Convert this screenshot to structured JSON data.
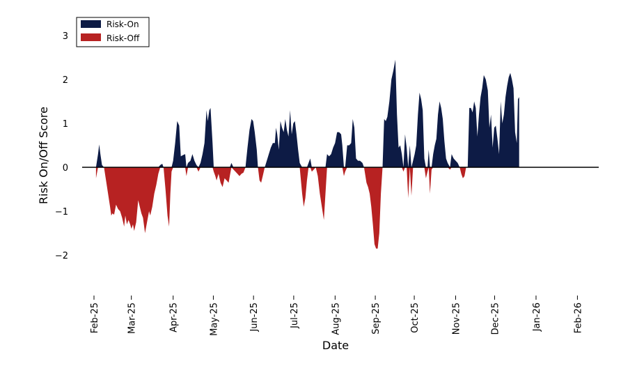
{
  "chart_data": {
    "type": "area",
    "title": "",
    "xlabel": "Date",
    "ylabel": "Risk On/Off Score",
    "ylim": [
      -3,
      3.5
    ],
    "yticks": [
      3,
      2,
      1,
      0,
      -1,
      -2
    ],
    "ytick_labels": [
      "3",
      "2",
      "1",
      "0",
      "−1",
      "−2"
    ],
    "xlim": [
      0,
      12.3
    ],
    "xticks": [
      {
        "label": "Feb-25",
        "x": 0.0
      },
      {
        "label": "Mar-25",
        "x": 0.93
      },
      {
        "label": "Apr-25",
        "x": 1.97
      },
      {
        "label": "May-25",
        "x": 2.97
      },
      {
        "label": "Jun-25",
        "x": 3.97
      },
      {
        "label": "Jul-25",
        "x": 4.97
      },
      {
        "label": "Aug-25",
        "x": 6.0
      },
      {
        "label": "Sep-25",
        "x": 7.0
      },
      {
        "label": "Oct-25",
        "x": 7.97
      },
      {
        "label": "Nov-25",
        "x": 9.0
      },
      {
        "label": "Dec-25",
        "x": 9.97
      },
      {
        "label": "Jan-26",
        "x": 11.0
      },
      {
        "label": "Feb-26",
        "x": 12.03
      }
    ],
    "legend": {
      "placement": "top-left",
      "entries": [
        {
          "label": "Risk-On",
          "color": "#0d1b45"
        },
        {
          "label": "Risk-Off",
          "color": "#b72222"
        }
      ]
    },
    "colors": {
      "positive": "#0d1b45",
      "negative": "#b72222",
      "zero_line": "#000000"
    },
    "series": [
      {
        "name": "Risk On/Off Score",
        "points": [
          [
            0.05,
            -0.25
          ],
          [
            0.1,
            0.3
          ],
          [
            0.13,
            0.52
          ],
          [
            0.16,
            0.3
          ],
          [
            0.2,
            0.05
          ],
          [
            0.25,
            0.0
          ],
          [
            0.3,
            -0.3
          ],
          [
            0.35,
            -0.6
          ],
          [
            0.4,
            -0.9
          ],
          [
            0.43,
            -1.1
          ],
          [
            0.46,
            -1.05
          ],
          [
            0.5,
            -1.08
          ],
          [
            0.55,
            -0.85
          ],
          [
            0.6,
            -0.95
          ],
          [
            0.65,
            -1.0
          ],
          [
            0.7,
            -1.15
          ],
          [
            0.75,
            -1.35
          ],
          [
            0.78,
            -1.1
          ],
          [
            0.82,
            -1.3
          ],
          [
            0.86,
            -1.2
          ],
          [
            0.9,
            -1.3
          ],
          [
            0.93,
            -1.4
          ],
          [
            0.97,
            -1.3
          ],
          [
            1.0,
            -1.45
          ],
          [
            1.05,
            -1.25
          ],
          [
            1.1,
            -0.75
          ],
          [
            1.14,
            -0.9
          ],
          [
            1.18,
            -1.05
          ],
          [
            1.22,
            -1.15
          ],
          [
            1.27,
            -1.5
          ],
          [
            1.32,
            -1.25
          ],
          [
            1.37,
            -1.0
          ],
          [
            1.4,
            -1.1
          ],
          [
            1.45,
            -0.9
          ],
          [
            1.5,
            -0.6
          ],
          [
            1.55,
            -0.4
          ],
          [
            1.6,
            -0.15
          ],
          [
            1.65,
            0.05
          ],
          [
            1.7,
            0.08
          ],
          [
            1.73,
            0.0
          ],
          [
            1.78,
            -0.5
          ],
          [
            1.83,
            -1.1
          ],
          [
            1.87,
            -1.35
          ],
          [
            1.9,
            -0.6
          ],
          [
            1.93,
            -0.1
          ],
          [
            1.97,
            0.15
          ],
          [
            2.02,
            0.55
          ],
          [
            2.07,
            1.05
          ],
          [
            2.12,
            0.95
          ],
          [
            2.16,
            0.25
          ],
          [
            2.22,
            0.28
          ],
          [
            2.27,
            0.3
          ],
          [
            2.3,
            -0.2
          ],
          [
            2.34,
            0.1
          ],
          [
            2.4,
            0.15
          ],
          [
            2.45,
            0.3
          ],
          [
            2.5,
            0.15
          ],
          [
            2.55,
            0.05
          ],
          [
            2.6,
            -0.1
          ],
          [
            2.65,
            0.1
          ],
          [
            2.7,
            0.3
          ],
          [
            2.75,
            0.55
          ],
          [
            2.8,
            1.3
          ],
          [
            2.83,
            1.05
          ],
          [
            2.87,
            1.3
          ],
          [
            2.9,
            1.35
          ],
          [
            2.95,
            0.55
          ],
          [
            2.98,
            -0.1
          ],
          [
            3.02,
            -0.2
          ],
          [
            3.05,
            -0.3
          ],
          [
            3.1,
            -0.15
          ],
          [
            3.15,
            -0.35
          ],
          [
            3.2,
            -0.45
          ],
          [
            3.25,
            -0.25
          ],
          [
            3.3,
            -0.3
          ],
          [
            3.35,
            -0.35
          ],
          [
            3.38,
            -0.2
          ],
          [
            3.42,
            0.1
          ],
          [
            3.47,
            -0.05
          ],
          [
            3.52,
            -0.1
          ],
          [
            3.57,
            -0.15
          ],
          [
            3.62,
            -0.2
          ],
          [
            3.67,
            -0.15
          ],
          [
            3.72,
            -0.12
          ],
          [
            3.77,
            0.0
          ],
          [
            3.82,
            0.45
          ],
          [
            3.87,
            0.85
          ],
          [
            3.92,
            1.1
          ],
          [
            3.96,
            1.05
          ],
          [
            4.0,
            0.8
          ],
          [
            4.05,
            0.4
          ],
          [
            4.08,
            0.0
          ],
          [
            4.12,
            -0.3
          ],
          [
            4.16,
            -0.35
          ],
          [
            4.2,
            -0.2
          ],
          [
            4.25,
            0.0
          ],
          [
            4.3,
            0.15
          ],
          [
            4.35,
            0.3
          ],
          [
            4.4,
            0.45
          ],
          [
            4.45,
            0.55
          ],
          [
            4.5,
            0.55
          ],
          [
            4.53,
            0.9
          ],
          [
            4.56,
            0.75
          ],
          [
            4.6,
            0.4
          ],
          [
            4.64,
            1.05
          ],
          [
            4.68,
            0.9
          ],
          [
            4.72,
            0.8
          ],
          [
            4.76,
            1.1
          ],
          [
            4.8,
            0.85
          ],
          [
            4.84,
            0.7
          ],
          [
            4.88,
            1.3
          ],
          [
            4.92,
            0.75
          ],
          [
            4.96,
            1.0
          ],
          [
            5.0,
            1.05
          ],
          [
            5.04,
            0.75
          ],
          [
            5.08,
            0.4
          ],
          [
            5.12,
            0.1
          ],
          [
            5.18,
            -0.6
          ],
          [
            5.22,
            -0.9
          ],
          [
            5.26,
            -0.7
          ],
          [
            5.3,
            -0.3
          ],
          [
            5.34,
            0.1
          ],
          [
            5.38,
            0.2
          ],
          [
            5.42,
            -0.1
          ],
          [
            5.47,
            -0.05
          ],
          [
            5.52,
            0.0
          ],
          [
            5.57,
            -0.2
          ],
          [
            5.62,
            -0.6
          ],
          [
            5.67,
            -0.9
          ],
          [
            5.72,
            -1.2
          ],
          [
            5.76,
            -0.6
          ],
          [
            5.8,
            0.3
          ],
          [
            5.85,
            0.25
          ],
          [
            5.9,
            0.3
          ],
          [
            5.95,
            0.45
          ],
          [
            6.0,
            0.55
          ],
          [
            6.05,
            0.8
          ],
          [
            6.1,
            0.8
          ],
          [
            6.15,
            0.75
          ],
          [
            6.18,
            0.5
          ],
          [
            6.22,
            -0.2
          ],
          [
            6.25,
            -0.1
          ],
          [
            6.3,
            0.5
          ],
          [
            6.35,
            0.5
          ],
          [
            6.4,
            0.55
          ],
          [
            6.44,
            1.1
          ],
          [
            6.48,
            0.9
          ],
          [
            6.52,
            0.2
          ],
          [
            6.57,
            0.15
          ],
          [
            6.62,
            0.15
          ],
          [
            6.68,
            0.1
          ],
          [
            6.72,
            0.0
          ],
          [
            6.78,
            -0.35
          ],
          [
            6.82,
            -0.45
          ],
          [
            6.86,
            -0.6
          ],
          [
            6.9,
            -0.9
          ],
          [
            6.94,
            -1.3
          ],
          [
            6.98,
            -1.75
          ],
          [
            7.02,
            -1.85
          ],
          [
            7.06,
            -1.85
          ],
          [
            7.1,
            -1.5
          ],
          [
            7.14,
            -0.6
          ],
          [
            7.18,
            0.0
          ],
          [
            7.22,
            1.1
          ],
          [
            7.26,
            1.05
          ],
          [
            7.3,
            1.15
          ],
          [
            7.35,
            1.5
          ],
          [
            7.4,
            2.0
          ],
          [
            7.45,
            2.2
          ],
          [
            7.5,
            2.45
          ],
          [
            7.54,
            1.2
          ],
          [
            7.58,
            0.45
          ],
          [
            7.62,
            0.5
          ],
          [
            7.66,
            0.3
          ],
          [
            7.7,
            -0.1
          ],
          [
            7.74,
            0.75
          ],
          [
            7.78,
            0.45
          ],
          [
            7.82,
            -0.7
          ],
          [
            7.86,
            0.5
          ],
          [
            7.9,
            -0.65
          ],
          [
            7.94,
            0.15
          ],
          [
            7.98,
            0.3
          ],
          [
            8.02,
            0.5
          ],
          [
            8.06,
            1.2
          ],
          [
            8.1,
            1.7
          ],
          [
            8.14,
            1.55
          ],
          [
            8.18,
            1.3
          ],
          [
            8.22,
            0.2
          ],
          [
            8.26,
            -0.25
          ],
          [
            8.3,
            -0.1
          ],
          [
            8.33,
            0.4
          ],
          [
            8.36,
            -0.6
          ],
          [
            8.4,
            -0.05
          ],
          [
            8.44,
            0.3
          ],
          [
            8.48,
            0.5
          ],
          [
            8.52,
            0.65
          ],
          [
            8.56,
            1.2
          ],
          [
            8.6,
            1.5
          ],
          [
            8.64,
            1.35
          ],
          [
            8.68,
            1.1
          ],
          [
            8.72,
            0.6
          ],
          [
            8.76,
            0.2
          ],
          [
            8.8,
            0.1
          ],
          [
            8.86,
            -0.05
          ],
          [
            8.9,
            0.3
          ],
          [
            8.95,
            0.2
          ],
          [
            9.0,
            0.15
          ],
          [
            9.05,
            0.1
          ],
          [
            9.1,
            0.0
          ],
          [
            9.14,
            -0.15
          ],
          [
            9.18,
            -0.25
          ],
          [
            9.22,
            -0.2
          ],
          [
            9.26,
            0.0
          ],
          [
            9.3,
            0.0
          ],
          [
            9.34,
            1.35
          ],
          [
            9.38,
            1.35
          ],
          [
            9.42,
            1.25
          ],
          [
            9.46,
            1.5
          ],
          [
            9.5,
            1.35
          ],
          [
            9.54,
            0.7
          ],
          [
            9.58,
            1.2
          ],
          [
            9.62,
            1.6
          ],
          [
            9.66,
            1.8
          ],
          [
            9.7,
            2.1
          ],
          [
            9.75,
            2.0
          ],
          [
            9.8,
            1.75
          ],
          [
            9.84,
            0.9
          ],
          [
            9.88,
            1.2
          ],
          [
            9.92,
            0.45
          ],
          [
            9.96,
            0.9
          ],
          [
            10.0,
            0.95
          ],
          [
            10.04,
            0.65
          ],
          [
            10.08,
            0.3
          ],
          [
            10.12,
            1.5
          ],
          [
            10.16,
            1.0
          ],
          [
            10.2,
            1.2
          ],
          [
            10.24,
            1.6
          ],
          [
            10.28,
            1.85
          ],
          [
            10.32,
            2.05
          ],
          [
            10.36,
            2.15
          ],
          [
            10.4,
            2.0
          ],
          [
            10.44,
            1.8
          ],
          [
            10.48,
            0.8
          ],
          [
            10.52,
            0.55
          ],
          [
            10.55,
            1.55
          ],
          [
            10.58,
            1.6
          ]
        ]
      }
    ]
  }
}
